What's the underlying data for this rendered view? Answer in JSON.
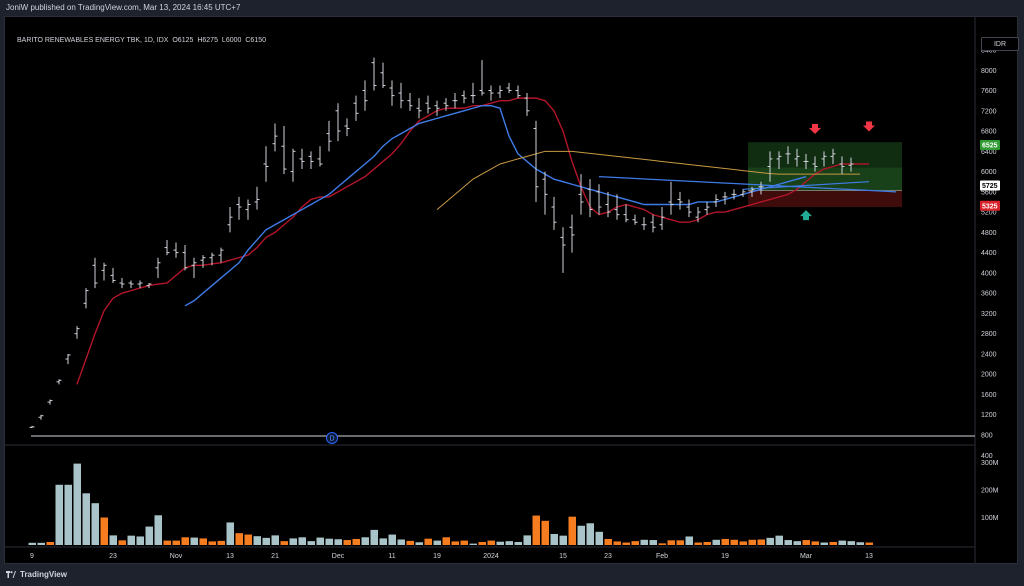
{
  "publisher": "JoniW published on TradingView.com, Mar 13, 2024 16:45 UTC+7",
  "legend": {
    "symbol": "BARITO RENEWABLES ENERGY TBK, 1D, IDX",
    "open_key": "O",
    "open": "6125",
    "high_key": "H",
    "high": "6275",
    "low_key": "L",
    "low": "6000",
    "close_key": "C",
    "close": "6150"
  },
  "currency": "IDR",
  "footer": {
    "brand": "TradingView"
  },
  "colors": {
    "bar": "#d1d4dc",
    "ema_fast": "#b2152a",
    "ema_slow": "#3f7ce8",
    "ma_long": "#c89a43",
    "vol_up": "#a8c4c9",
    "vol_down": "#f57d20",
    "zone_top": "#2e7d32",
    "zone_bottom": "#8b1a1a",
    "label_green": "#2e9b33",
    "label_red": "#d8232a",
    "arrow_red": "#f23645",
    "arrow_green": "#22ab94"
  },
  "chart_data": {
    "type": "ohlc",
    "price_axis": {
      "min": 400,
      "max": 8400,
      "ticks": [
        "8400",
        "8000",
        "7600",
        "7200",
        "6800",
        "6400",
        "6000",
        "5600",
        "5200",
        "4800",
        "4400",
        "4000",
        "3600",
        "3200",
        "2800",
        "2400",
        "2000",
        "1600",
        "1200",
        "800",
        "400"
      ]
    },
    "volume_axis": {
      "max": 320,
      "unit": "M",
      "ticks": [
        "300M",
        "200M",
        "100M"
      ]
    },
    "time_labels": [
      "9",
      "23",
      "Nov",
      "13",
      "21",
      "Dec",
      "11",
      "19",
      "2024",
      "15",
      "23",
      "Feb",
      "19",
      "Mar",
      "13"
    ],
    "time_label_bars": [
      0,
      9,
      16,
      22,
      27,
      34,
      40,
      45,
      51,
      59,
      64,
      70,
      77,
      86,
      93
    ],
    "price_labels": {
      "zone_top": "6525",
      "current": "5725",
      "zone_bottom": "5325"
    },
    "horizontal_line": 780,
    "zone": {
      "from_bar": 80,
      "to_bar": 96,
      "top": 6580,
      "mid_top": 6080,
      "mid": 5625,
      "bottom": 5300
    },
    "bars": [
      [
        950,
        980,
        940,
        960
      ],
      [
        1150,
        1200,
        1100,
        1180
      ],
      [
        1450,
        1500,
        1400,
        1480
      ],
      [
        1850,
        1900,
        1800,
        1880
      ],
      [
        2300,
        2400,
        2200,
        2380
      ],
      [
        2800,
        2950,
        2700,
        2900
      ],
      [
        3400,
        3700,
        3300,
        3650
      ],
      [
        4150,
        4300,
        3700,
        3800
      ],
      [
        4050,
        4200,
        3850,
        4150
      ],
      [
        3950,
        4100,
        3800,
        3850
      ],
      [
        3800,
        3900,
        3700,
        3780
      ],
      [
        3800,
        3850,
        3700,
        3780
      ],
      [
        3780,
        3850,
        3700,
        3800
      ],
      [
        3750,
        3800,
        3700,
        3780
      ],
      [
        4100,
        4300,
        3900,
        4200
      ],
      [
        4500,
        4650,
        4350,
        4400
      ],
      [
        4450,
        4600,
        4300,
        4400
      ],
      [
        4400,
        4550,
        4050,
        4100
      ],
      [
        4150,
        4300,
        3900,
        4200
      ],
      [
        4250,
        4350,
        4100,
        4300
      ],
      [
        4300,
        4400,
        4150,
        4350
      ],
      [
        4350,
        4500,
        4200,
        4450
      ],
      [
        4950,
        5300,
        4800,
        5100
      ],
      [
        5350,
        5500,
        5050,
        5300
      ],
      [
        5250,
        5450,
        5050,
        5350
      ],
      [
        5400,
        5700,
        5250,
        5450
      ],
      [
        6150,
        6500,
        5800,
        6100
      ],
      [
        6550,
        6950,
        6400,
        6700
      ],
      [
        6500,
        6900,
        5950,
        6050
      ],
      [
        6000,
        6450,
        5800,
        6400
      ],
      [
        6250,
        6450,
        6050,
        6200
      ],
      [
        6300,
        6400,
        6050,
        6200
      ],
      [
        6250,
        6500,
        6100,
        6150
      ],
      [
        6750,
        7000,
        6400,
        6600
      ],
      [
        7200,
        7350,
        6600,
        6800
      ],
      [
        6900,
        7050,
        6700,
        6850
      ],
      [
        7350,
        7500,
        7000,
        7150
      ],
      [
        7600,
        7800,
        7200,
        7400
      ],
      [
        8150,
        8250,
        7600,
        7700
      ],
      [
        7950,
        8150,
        7650,
        7700
      ],
      [
        7650,
        7800,
        7300,
        7500
      ],
      [
        7550,
        7750,
        7250,
        7400
      ],
      [
        7400,
        7550,
        7200,
        7300
      ],
      [
        7250,
        7450,
        7050,
        7200
      ],
      [
        7350,
        7500,
        7150,
        7250
      ],
      [
        7300,
        7400,
        7100,
        7250
      ],
      [
        7350,
        7450,
        7200,
        7300
      ],
      [
        7400,
        7550,
        7250,
        7400
      ],
      [
        7500,
        7600,
        7350,
        7450
      ],
      [
        7500,
        7750,
        7350,
        7500
      ],
      [
        7600,
        8200,
        7500,
        7550
      ],
      [
        7600,
        7700,
        7400,
        7550
      ],
      [
        7550,
        7700,
        7450,
        7600
      ],
      [
        7650,
        7750,
        7550,
        7600
      ],
      [
        7600,
        7700,
        7450,
        7500
      ],
      [
        7450,
        7550,
        7100,
        7200
      ],
      [
        6850,
        7000,
        5400,
        5700
      ],
      [
        5850,
        6000,
        5150,
        5550
      ],
      [
        5300,
        5500,
        4850,
        5000
      ],
      [
        4700,
        4900,
        4000,
        4550
      ],
      [
        4900,
        5150,
        4400,
        4750
      ],
      [
        5550,
        5950,
        5150,
        5400
      ],
      [
        5650,
        5850,
        5100,
        5250
      ],
      [
        5600,
        5750,
        5150,
        5300
      ],
      [
        5350,
        5600,
        5100,
        5200
      ],
      [
        5250,
        5550,
        5050,
        5150
      ],
      [
        5150,
        5350,
        5000,
        5050
      ],
      [
        5050,
        5150,
        4950,
        5000
      ],
      [
        4950,
        5100,
        4850,
        4950
      ],
      [
        5000,
        5150,
        4800,
        4900
      ],
      [
        4950,
        5300,
        4850,
        5100
      ],
      [
        5400,
        5800,
        5150,
        5350
      ],
      [
        5450,
        5600,
        5250,
        5400
      ],
      [
        5300,
        5450,
        5100,
        5200
      ],
      [
        5100,
        5300,
        5000,
        5200
      ],
      [
        5250,
        5400,
        5150,
        5300
      ],
      [
        5400,
        5550,
        5300,
        5450
      ],
      [
        5500,
        5600,
        5350,
        5500
      ],
      [
        5550,
        5650,
        5450,
        5550
      ],
      [
        5550,
        5650,
        5500,
        5600
      ],
      [
        5600,
        5700,
        5500,
        5650
      ],
      [
        5700,
        5800,
        5550,
        5700
      ],
      [
        6100,
        6400,
        5800,
        6250
      ],
      [
        6250,
        6400,
        6050,
        6300
      ],
      [
        6350,
        6500,
        6150,
        6350
      ],
      [
        6250,
        6450,
        6100,
        6300
      ],
      [
        6200,
        6350,
        6050,
        6200
      ],
      [
        6150,
        6300,
        6000,
        6100
      ],
      [
        6250,
        6400,
        6100,
        6300
      ],
      [
        6300,
        6450,
        6150,
        6350
      ],
      [
        6150,
        6300,
        5950,
        6100
      ],
      [
        6125,
        6275,
        6000,
        6150
      ]
    ],
    "series": [
      {
        "name": "",
        "kind": "ema_fast",
        "start": 5,
        "values": [
          1800,
          2300,
          2800,
          3250,
          3500,
          3600,
          3650,
          3700,
          3750,
          3780,
          3800,
          3950,
          4100,
          4150,
          4150,
          4180,
          4200,
          4250,
          4300,
          4350,
          4500,
          4700,
          4800,
          4950,
          5100,
          5300,
          5450,
          5500,
          5500,
          5600,
          5700,
          5800,
          5900,
          6050,
          6200,
          6350,
          6550,
          6800,
          7000,
          7100,
          7200,
          7250,
          7250,
          7250,
          7300,
          7300,
          7350,
          7400,
          7400,
          7450,
          7450,
          7450,
          7400,
          7200,
          6800,
          6200,
          5700,
          5300,
          5150,
          5200,
          5300,
          5350,
          5300,
          5250,
          5150,
          5100,
          5050,
          5000,
          5000,
          5050,
          5150,
          5200,
          5200,
          5250,
          5300,
          5350,
          5400,
          5450,
          5500,
          5550,
          5650,
          5800,
          5950,
          6050,
          6100,
          6150,
          6150,
          6150,
          6150
        ]
      },
      {
        "name": "",
        "kind": "ema_slow",
        "start": 17,
        "values": [
          3350,
          3450,
          3600,
          3750,
          3900,
          4050,
          4200,
          4450,
          4650,
          4850,
          4950,
          5050,
          5150,
          5250,
          5350,
          5450,
          5550,
          5700,
          5850,
          6000,
          6150,
          6300,
          6500,
          6650,
          6750,
          6850,
          6950,
          7000,
          7050,
          7100,
          7150,
          7200,
          7250,
          7300,
          7300,
          7250,
          6700,
          6350,
          6200,
          6050,
          5950,
          5850,
          5800,
          5750,
          5700,
          5650,
          5600,
          5550,
          5500,
          5450,
          5400,
          5350,
          5350,
          5350,
          5350,
          5350,
          5350,
          5400,
          5400,
          5400,
          5450,
          5500,
          5550,
          5600,
          5650,
          5700,
          5750,
          5800,
          5850,
          5900
        ]
      },
      {
        "name": "",
        "kind": "ma_long",
        "start": 45,
        "values": [
          5250,
          5400,
          5550,
          5700,
          5850,
          5950,
          6050,
          6150,
          6200,
          6250,
          6300,
          6350,
          6400,
          6400,
          6400,
          6400,
          6380,
          6360,
          6340,
          6320,
          6300,
          6280,
          6260,
          6240,
          6220,
          6200,
          6180,
          6160,
          6140,
          6120,
          6100,
          6080,
          6060,
          6040,
          6020,
          6000,
          5980,
          5960,
          5950,
          5950,
          5950,
          5950,
          5950,
          5950,
          5950,
          5950,
          5950,
          5950
        ]
      }
    ],
    "trendlines": [
      {
        "from": [
          63,
          5900
        ],
        "to": [
          96,
          5600
        ]
      },
      {
        "from": [
          79,
          5650
        ],
        "to": [
          93,
          5800
        ]
      }
    ],
    "volume": [
      [
        8,
        1
      ],
      [
        8,
        1
      ],
      [
        11,
        0
      ],
      [
        219,
        1
      ],
      [
        219,
        1
      ],
      [
        296,
        1
      ],
      [
        188,
        1
      ],
      [
        152,
        1
      ],
      [
        100,
        0
      ],
      [
        35,
        1
      ],
      [
        17,
        0
      ],
      [
        34,
        1
      ],
      [
        31,
        1
      ],
      [
        67,
        1
      ],
      [
        108,
        1
      ],
      [
        16,
        0
      ],
      [
        16,
        0
      ],
      [
        28,
        0
      ],
      [
        27,
        1
      ],
      [
        24,
        0
      ],
      [
        13,
        0
      ],
      [
        15,
        0
      ],
      [
        82,
        1
      ],
      [
        43,
        0
      ],
      [
        38,
        0
      ],
      [
        32,
        1
      ],
      [
        26,
        1
      ],
      [
        35,
        1
      ],
      [
        14,
        0
      ],
      [
        24,
        1
      ],
      [
        28,
        1
      ],
      [
        14,
        1
      ],
      [
        27,
        1
      ],
      [
        23,
        1
      ],
      [
        21,
        1
      ],
      [
        18,
        0
      ],
      [
        22,
        0
      ],
      [
        28,
        1
      ],
      [
        55,
        1
      ],
      [
        24,
        1
      ],
      [
        38,
        1
      ],
      [
        20,
        1
      ],
      [
        15,
        0
      ],
      [
        10,
        1
      ],
      [
        23,
        0
      ],
      [
        16,
        1
      ],
      [
        28,
        0
      ],
      [
        13,
        0
      ],
      [
        16,
        0
      ],
      [
        5,
        1
      ],
      [
        11,
        0
      ],
      [
        16,
        0
      ],
      [
        12,
        1
      ],
      [
        14,
        1
      ],
      [
        11,
        1
      ],
      [
        35,
        1
      ],
      [
        107,
        0
      ],
      [
        88,
        0
      ],
      [
        40,
        1
      ],
      [
        34,
        1
      ],
      [
        103,
        0
      ],
      [
        70,
        1
      ],
      [
        79,
        1
      ],
      [
        48,
        1
      ],
      [
        22,
        0
      ],
      [
        13,
        0
      ],
      [
        9,
        0
      ],
      [
        14,
        0
      ],
      [
        19,
        1
      ],
      [
        18,
        1
      ],
      [
        6,
        0
      ],
      [
        17,
        0
      ],
      [
        17,
        0
      ],
      [
        31,
        1
      ],
      [
        9,
        0
      ],
      [
        11,
        0
      ],
      [
        19,
        1
      ],
      [
        22,
        0
      ],
      [
        19,
        0
      ],
      [
        13,
        0
      ],
      [
        19,
        0
      ],
      [
        20,
        0
      ],
      [
        26,
        1
      ],
      [
        34,
        1
      ],
      [
        18,
        1
      ],
      [
        14,
        1
      ],
      [
        18,
        0
      ],
      [
        13,
        0
      ],
      [
        9,
        1
      ],
      [
        11,
        0
      ],
      [
        16,
        1
      ],
      [
        14,
        1
      ],
      [
        10,
        1
      ],
      [
        9,
        0
      ]
    ],
    "markers": [
      {
        "type": "arrow-down",
        "bar": 87,
        "price": 6800
      },
      {
        "type": "arrow-down",
        "bar": 93,
        "price": 6850
      },
      {
        "type": "arrow-up",
        "bar": 86,
        "price": 5180
      }
    ],
    "dividend_marker": {
      "label": "D",
      "bar": 28
    }
  }
}
